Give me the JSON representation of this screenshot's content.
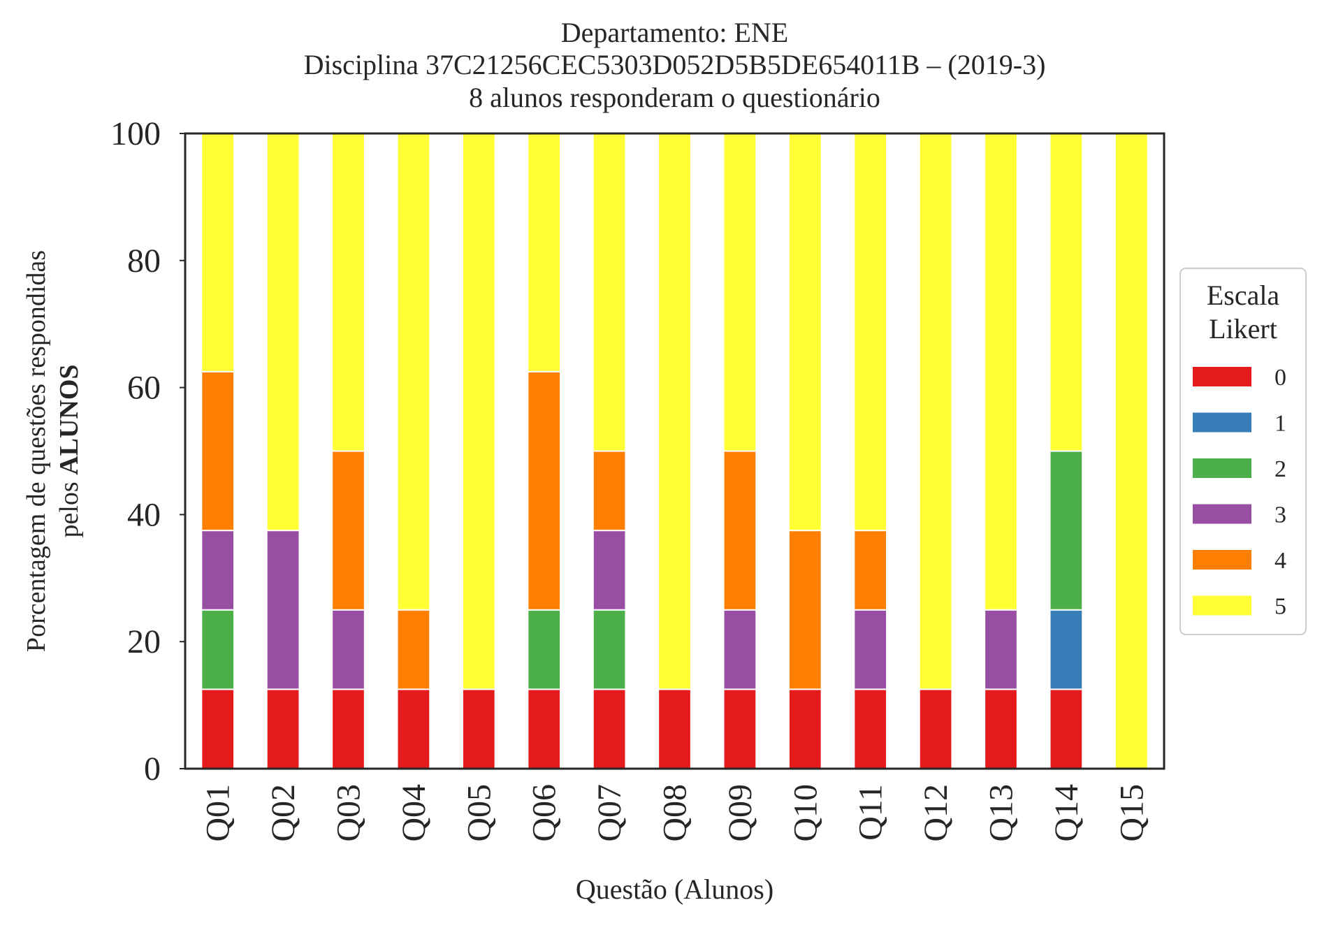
{
  "chart_data": {
    "type": "bar",
    "stacked": true,
    "title_lines": [
      "Departamento: ENE",
      "Disciplina 37C21256CEC5303D052D5B5DE654011B – (2019-3)",
      "8 alunos responderam o questionário"
    ],
    "xlabel": "Questão (Alunos)",
    "ylabel_line1": "Porcentagem de questões respondidas",
    "ylabel_line2_prefix": "pelos ",
    "ylabel_line2_bold": "ALUNOS",
    "ylim": [
      0,
      100
    ],
    "yticks": [
      "0",
      "20",
      "40",
      "60",
      "80",
      "100"
    ],
    "grid": false,
    "legend": {
      "title_lines": [
        "Escala",
        "Likert"
      ],
      "placement": "center-right outside"
    },
    "categories": [
      "Q01",
      "Q02",
      "Q03",
      "Q04",
      "Q05",
      "Q06",
      "Q07",
      "Q08",
      "Q09",
      "Q10",
      "Q11",
      "Q12",
      "Q13",
      "Q14",
      "Q15"
    ],
    "series": [
      {
        "name": "0",
        "color": "#e41a1c",
        "values": [
          12.5,
          12.5,
          12.5,
          12.5,
          12.5,
          12.5,
          12.5,
          12.5,
          12.5,
          12.5,
          12.5,
          12.5,
          12.5,
          12.5,
          0
        ]
      },
      {
        "name": "1",
        "color": "#377eb8",
        "values": [
          0,
          0,
          0,
          0,
          0,
          0,
          0,
          0,
          0,
          0,
          0,
          0,
          0,
          12.5,
          0
        ]
      },
      {
        "name": "2",
        "color": "#4daf4a",
        "values": [
          12.5,
          0,
          0,
          0,
          0,
          12.5,
          12.5,
          0,
          0,
          0,
          0,
          0,
          0,
          25,
          0
        ]
      },
      {
        "name": "3",
        "color": "#984ea3",
        "values": [
          12.5,
          25,
          12.5,
          0,
          0,
          0,
          12.5,
          0,
          12.5,
          0,
          12.5,
          0,
          12.5,
          0,
          0
        ]
      },
      {
        "name": "4",
        "color": "#ff7f00",
        "values": [
          25,
          0,
          25,
          12.5,
          0,
          37.5,
          12.5,
          0,
          25,
          25,
          12.5,
          0,
          0,
          0,
          0
        ]
      },
      {
        "name": "5",
        "color": "#ffff33",
        "values": [
          37.5,
          62.5,
          50,
          75,
          87.5,
          37.5,
          50,
          87.5,
          50,
          62.5,
          62.5,
          87.5,
          75,
          50,
          100
        ]
      }
    ]
  }
}
